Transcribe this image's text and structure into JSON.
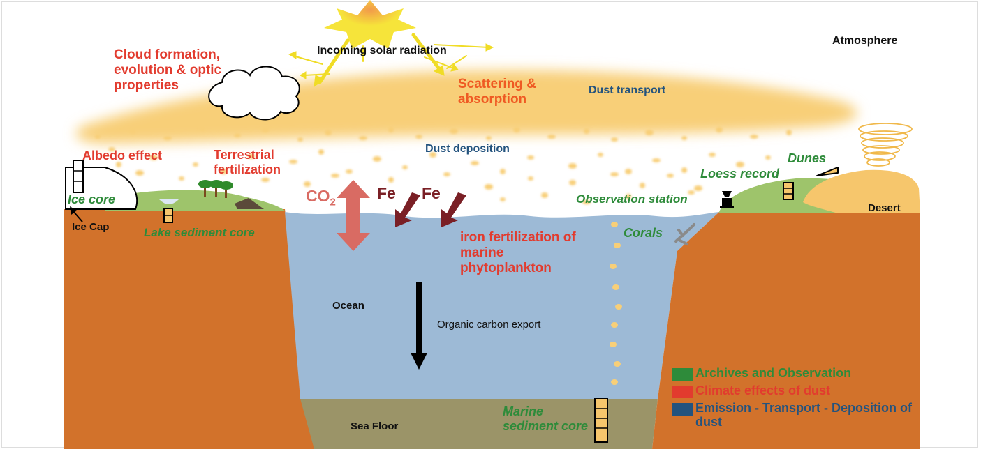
{
  "labels": {
    "incoming_solar": "Incoming solar radiation",
    "atmosphere": "Atmosphere",
    "cloud_formation": "Cloud formation,\nevolution & optic\nproperties",
    "scattering": "Scattering &\nabsorption",
    "dust_transport": "Dust transport",
    "dust_deposition": "Dust deposition",
    "albedo": "Albedo effect",
    "terrestrial": "Terrestrial\nfertilization",
    "ice_core": "Ice core",
    "ice_cap": "Ice Cap",
    "lake_core": "Lake sediment core",
    "co2": "CO",
    "co2_sub": "2",
    "fe1": "Fe",
    "fe2": "Fe",
    "iron_fert": "iron fertilization of\nmarine\nphytoplankton",
    "ocean": "Ocean",
    "organic_carbon": "Organic carbon export",
    "sea_floor": "Sea Floor",
    "marine_core": "Marine\nsediment core",
    "corals": "Corals",
    "observation": "Observation station",
    "loess": "Loess record",
    "dunes": "Dunes",
    "desert": "Desert"
  },
  "legend": [
    {
      "text": "Archives and Observation",
      "color": "#2e8b3a"
    },
    {
      "text": "Climate effects of dust",
      "color": "#e23b2e"
    },
    {
      "text": "Emission - Transport - Deposition of dust",
      "color": "#23537e"
    }
  ],
  "colors": {
    "earth": "#d2722b",
    "ocean": "#9dbad6",
    "seafloor": "#9b9468",
    "grass": "#9ec46b",
    "sand": "#f6c66c",
    "dust": "#f8cf78",
    "sun": "#f6e43a",
    "co2_arrow": "#d96b63",
    "fe_arrow": "#7a1f25"
  }
}
